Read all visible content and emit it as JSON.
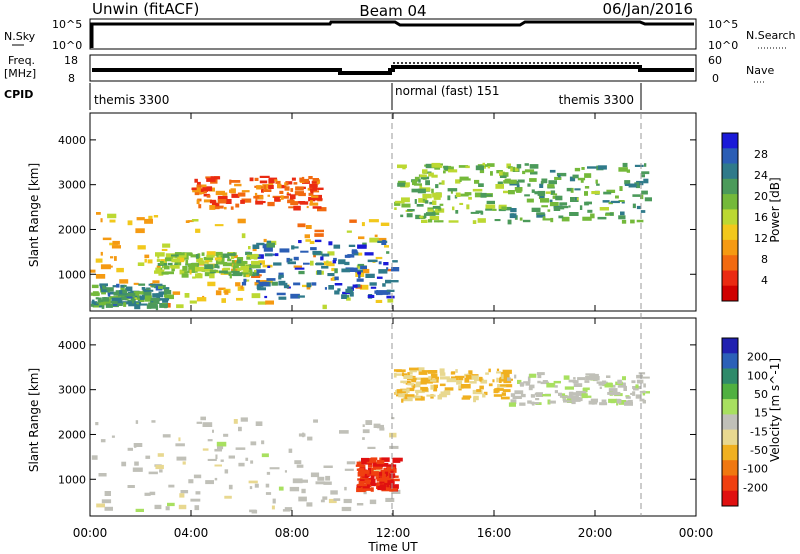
{
  "header": {
    "station": "Unwin (fitACF)",
    "beam": "Beam 04",
    "date": "06/Jan/2016"
  },
  "top_panels": {
    "nsky_label": "N.Sky",
    "nsky_ticks": [
      "10^5",
      "10^0"
    ],
    "nsearch_label": "N.Search",
    "nsearch_ticks": [
      "10^5",
      "10^0"
    ],
    "freq_label_1": "Freq.",
    "freq_label_2": "[MHz]",
    "freq_ticks": [
      "18",
      "8"
    ],
    "nave_label": "Nave",
    "nave_ticks": [
      "60",
      "0"
    ],
    "cpid_label": "CPID",
    "cpid_segments": [
      {
        "label": "themis 3300",
        "start_h": 0,
        "end_h": 12
      },
      {
        "label": "normal (fast) 151",
        "start_h": 12,
        "end_h": 22
      },
      {
        "label": "themis 3300",
        "start_h": 22,
        "end_h": 24
      }
    ]
  },
  "legend_colors": {
    "power": [
      "#1a1ad8",
      "#2b5eb5",
      "#2f7a8a",
      "#4b9a5a",
      "#74b93a",
      "#bcd832",
      "#f2c81c",
      "#f59a12",
      "#f26a10",
      "#ea2a12",
      "#d00000"
    ],
    "velocity": [
      "#2020b0",
      "#2b60b8",
      "#2f8a6a",
      "#50b040",
      "#a8e060",
      "#c0c0b8",
      "#e8d890",
      "#f0b020",
      "#f07810",
      "#f04010",
      "#e01010"
    ]
  },
  "chart_data": [
    {
      "type": "heatmap",
      "title": "Power",
      "ylabel": "Slant Range [km]",
      "xlabel": "Time UT",
      "x_ticks": [
        "00:00",
        "04:00",
        "08:00",
        "12:00",
        "16:00",
        "20:00",
        "00:00"
      ],
      "xlim_hours": [
        0,
        24
      ],
      "ylim_km": [
        180,
        4600
      ],
      "y_ticks": [
        1000,
        2000,
        3000,
        4000
      ],
      "colorbar": {
        "label": "Power [dB]",
        "unit_label": "[dB]",
        "ticks": [
          "28",
          "24",
          "20",
          "16",
          "12",
          "8",
          "4"
        ],
        "range": [
          0,
          30
        ]
      },
      "regions": [
        {
          "t": [
            0,
            12
          ],
          "r": [
            300,
            2400
          ],
          "level": 11
        },
        {
          "t": [
            0,
            3
          ],
          "r": [
            300,
            800
          ],
          "level": 22
        },
        {
          "t": [
            6,
            12
          ],
          "r": [
            500,
            1800
          ],
          "level": 26
        },
        {
          "t": [
            2.5,
            6.5
          ],
          "r": [
            1000,
            1500
          ],
          "level": 17
        },
        {
          "t": [
            4,
            9
          ],
          "r": [
            2500,
            3200
          ],
          "level": 6
        },
        {
          "t": [
            12,
            16.5
          ],
          "r": [
            2200,
            3500
          ],
          "level": 18
        },
        {
          "t": [
            16.5,
            22
          ],
          "r": [
            2200,
            3500
          ],
          "level": 20
        }
      ]
    },
    {
      "type": "heatmap",
      "title": "Velocity",
      "ylabel": "Slant Range [km]",
      "xlabel": "Time UT",
      "x_ticks": [
        "00:00",
        "04:00",
        "08:00",
        "12:00",
        "16:00",
        "20:00",
        "00:00"
      ],
      "xlim_hours": [
        0,
        24
      ],
      "ylim_km": [
        180,
        4600
      ],
      "y_ticks": [
        1000,
        2000,
        3000,
        4000
      ],
      "colorbar": {
        "label": "Velocity [m s^-1]",
        "ticks": [
          "200",
          "100",
          "50",
          "15",
          "-15",
          "-50",
          "-100",
          "-200"
        ],
        "range": [
          -250,
          250
        ]
      },
      "regions": [
        {
          "t": [
            0,
            12
          ],
          "r": [
            300,
            2400
          ],
          "level": 0
        },
        {
          "t": [
            10.5,
            12
          ],
          "r": [
            800,
            1500
          ],
          "level": -220
        },
        {
          "t": [
            12,
            16.5
          ],
          "r": [
            2800,
            3500
          ],
          "level": -80
        },
        {
          "t": [
            16.5,
            22
          ],
          "r": [
            2700,
            3400
          ],
          "level": 10
        }
      ]
    }
  ]
}
